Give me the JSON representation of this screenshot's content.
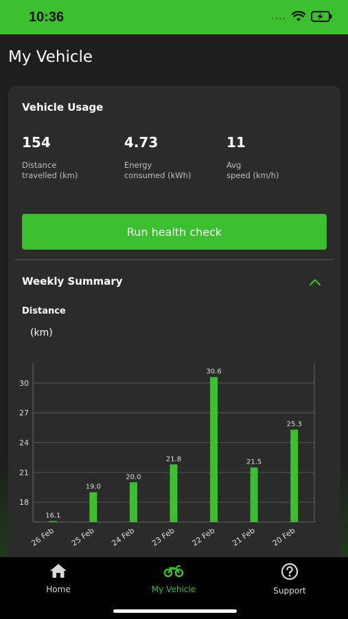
{
  "status_bar": {
    "time": "10:36",
    "signal": "....",
    "battery_charging": true
  },
  "page_title": "My Vehicle",
  "usage": {
    "title": "Vehicle Usage",
    "stats": [
      {
        "value": "154",
        "label": "Distance\ntravelled (km)"
      },
      {
        "value": "4.73",
        "label": "Energy\nconsumed (kWh)"
      },
      {
        "value": "11",
        "label": "Avg\nspeed (km/h)"
      }
    ],
    "health_check_label": "Run health check"
  },
  "weekly": {
    "title": "Weekly Summary",
    "expanded": true,
    "metric_label": "Distance",
    "unit_label": "(km)"
  },
  "chart_data": {
    "type": "bar",
    "categories": [
      "26 Feb",
      "25 Feb",
      "24 Feb",
      "23 Feb",
      "22 Feb",
      "21 Feb",
      "20 Feb"
    ],
    "values": [
      16.1,
      19.0,
      20.0,
      21.8,
      30.6,
      21.5,
      25.3
    ],
    "value_labels": [
      "16.1",
      "19.0",
      "20.0",
      "21.8",
      "30.6",
      "21.5",
      "25.3"
    ],
    "y_ticks": [
      18,
      21,
      24,
      27,
      30
    ],
    "y_tick_labels": [
      "18",
      "21",
      "24",
      "27",
      "30"
    ],
    "ylim": [
      16,
      32
    ],
    "grid": true,
    "bar_color": "#3bbf2e"
  },
  "tabs": [
    {
      "label": "Home",
      "icon": "home-icon",
      "active": false
    },
    {
      "label": "My Vehicle",
      "icon": "motorbike-icon",
      "active": true
    },
    {
      "label": "Support",
      "icon": "question-circle-icon",
      "active": false
    }
  ],
  "colors": {
    "accent": "#3bbf2e",
    "background": "#1e1e1e",
    "card": "#2b2b2b",
    "tabbar": "#000000"
  }
}
